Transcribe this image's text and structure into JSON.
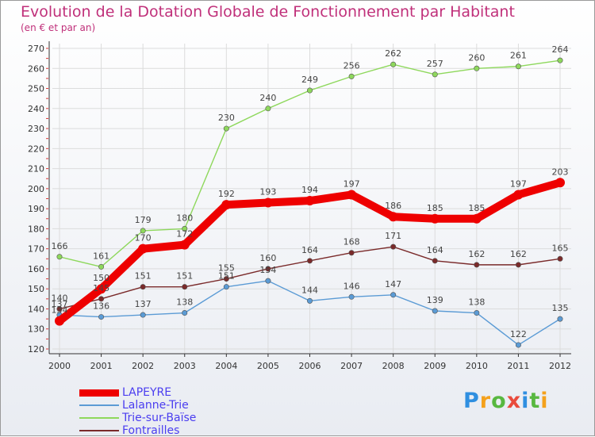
{
  "header": {
    "title": "Evolution de la Dotation Globale de Fonctionnement par Habitant",
    "subtitle": "(en € et par an)"
  },
  "brand": {
    "letters": [
      "P",
      "r",
      "o",
      "x",
      "i",
      "t",
      "i"
    ],
    "colors": [
      "#2f8fe0",
      "#f4a11c",
      "#58b840",
      "#e94b3c",
      "#2f8fe0",
      "#58b840",
      "#f4a11c"
    ]
  },
  "chart_data": {
    "type": "line",
    "x": [
      "2000",
      "2001",
      "2002",
      "2003",
      "2004",
      "2005",
      "2006",
      "2007",
      "2008",
      "2009",
      "2010",
      "2011",
      "2012"
    ],
    "ylim": [
      120,
      270
    ],
    "yticks": [
      120,
      130,
      140,
      150,
      160,
      170,
      180,
      190,
      200,
      210,
      220,
      230,
      240,
      250,
      260,
      270
    ],
    "grid": true,
    "legend_position": "bottom-left",
    "series": [
      {
        "name": "LAPEYRE",
        "color": "#ee0000",
        "values": [
          134,
          150,
          170,
          172,
          192,
          193,
          194,
          197,
          186,
          185,
          185,
          197,
          203
        ],
        "emphasis": true
      },
      {
        "name": "Lalanne-Trie",
        "color": "#5b9bd5",
        "values": [
          137,
          136,
          137,
          138,
          151,
          154,
          144,
          146,
          147,
          139,
          138,
          122,
          135
        ]
      },
      {
        "name": "Trie-sur-Baïse",
        "color": "#8ed85c",
        "values": [
          166,
          161,
          179,
          180,
          230,
          240,
          249,
          256,
          262,
          257,
          260,
          261,
          264
        ]
      },
      {
        "name": "Fontrailles",
        "color": "#7a2a2a",
        "values": [
          140,
          145,
          151,
          151,
          155,
          160,
          164,
          168,
          171,
          164,
          162,
          162,
          165
        ]
      }
    ],
    "render_order": [
      2,
      1,
      3,
      0
    ]
  }
}
